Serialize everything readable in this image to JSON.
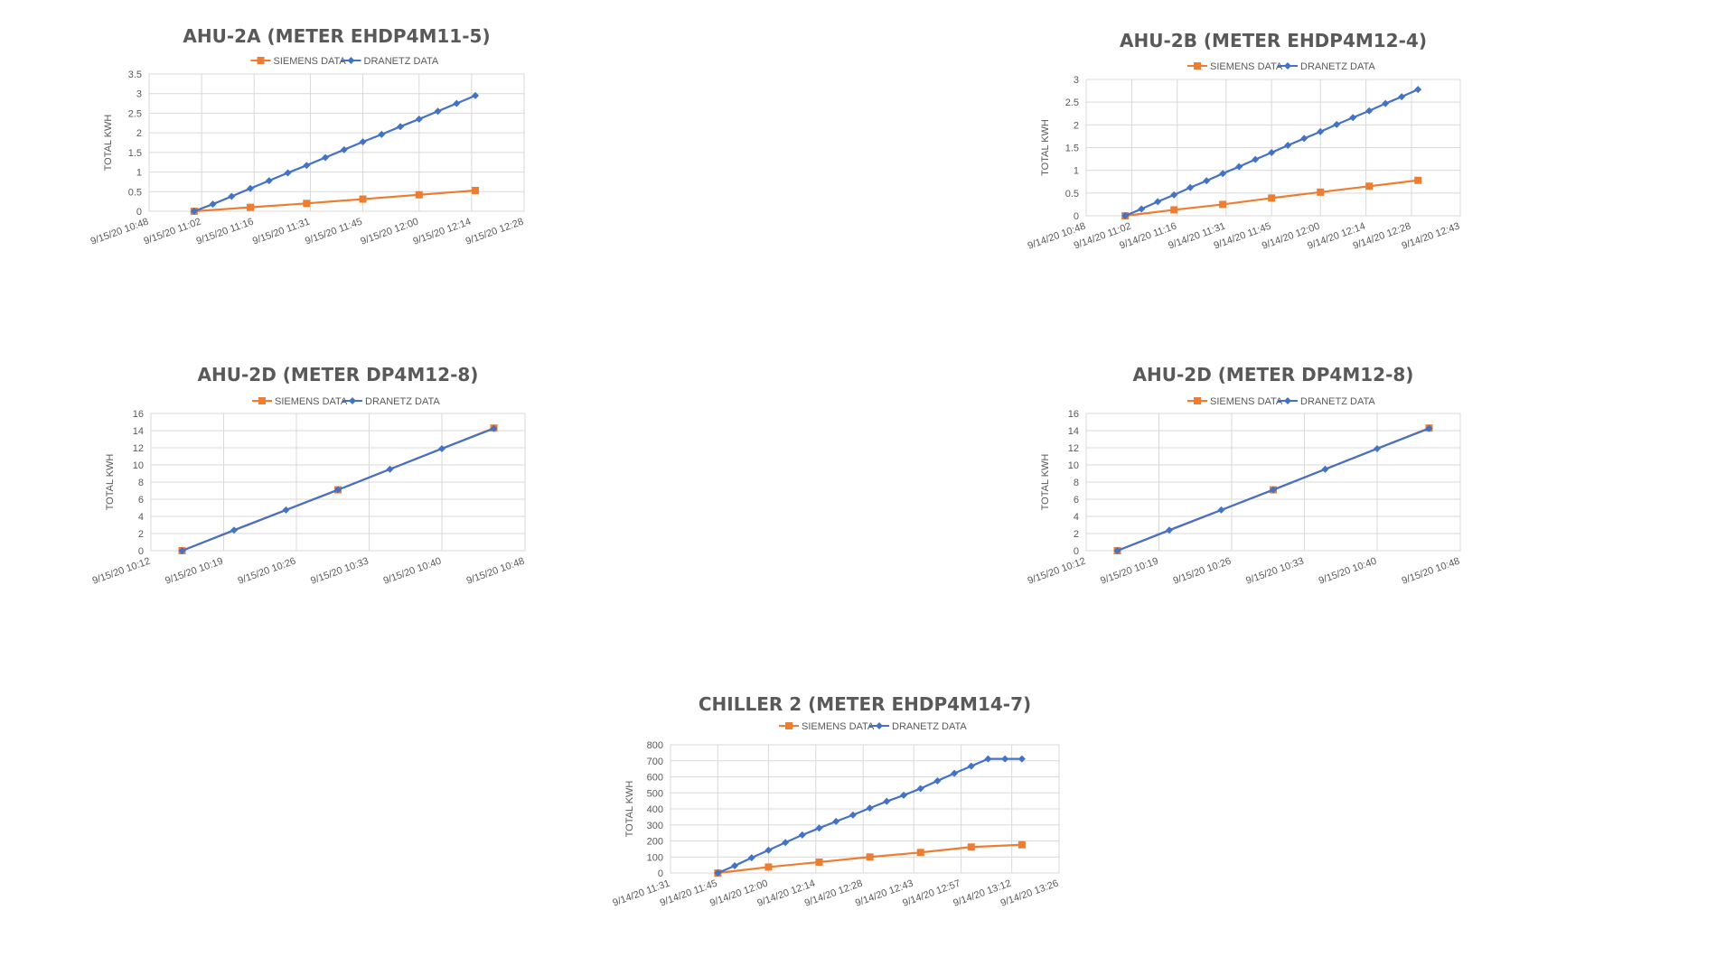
{
  "colors": {
    "siemens": "#ED7D31",
    "dranetz": "#4472C4",
    "grid": "#D9D9D9",
    "text": "#595959"
  },
  "chart_data": [
    {
      "type": "line",
      "title": "AHU-2A (METER EHDP4M11-5)",
      "ylabel": "TOTAL KWH",
      "xlabel": "",
      "ylim": [
        0,
        3.5
      ],
      "yticks": [
        0,
        0.5,
        1,
        1.5,
        2,
        2.5,
        3,
        3.5
      ],
      "ytick_labels": [
        "0",
        "0.5",
        "1",
        "1.5",
        "2",
        "2.5",
        "3",
        "3.5"
      ],
      "xlim": [
        "9/15/20 10:48",
        "9/15/20 12:28"
      ],
      "xtick_labels": [
        "9/15/20 10:48",
        "9/15/20 11:02",
        "9/15/20 11:16",
        "9/15/20 11:31",
        "9/15/20 11:45",
        "9/15/20 12:00",
        "9/15/20 12:14",
        "9/15/20 12:28"
      ],
      "legend": "top-center",
      "grid": true,
      "series": [
        {
          "name": "SIEMENS DATA",
          "marker": "square",
          "color": "#ED7D31",
          "x": [
            "9/15/20 11:00",
            "9/15/20 11:15",
            "9/15/20 11:30",
            "9/15/20 11:45",
            "9/15/20 12:00",
            "9/15/20 12:15"
          ],
          "y": [
            0,
            0.1,
            0.2,
            0.31,
            0.42,
            0.53
          ]
        },
        {
          "name": "DRANETZ DATA",
          "marker": "diamond",
          "color": "#4472C4",
          "x": [
            "9/15/20 11:00",
            "9/15/20 11:05",
            "9/15/20 11:10",
            "9/15/20 11:15",
            "9/15/20 11:20",
            "9/15/20 11:25",
            "9/15/20 11:30",
            "9/15/20 11:35",
            "9/15/20 11:40",
            "9/15/20 11:45",
            "9/15/20 11:50",
            "9/15/20 11:55",
            "9/15/20 12:00",
            "9/15/20 12:05",
            "9/15/20 12:10",
            "9/15/20 12:15"
          ],
          "y": [
            0,
            0.18,
            0.38,
            0.58,
            0.78,
            0.98,
            1.17,
            1.37,
            1.57,
            1.77,
            1.96,
            2.16,
            2.35,
            2.55,
            2.75,
            2.95
          ]
        }
      ]
    },
    {
      "type": "line",
      "title": "AHU-2B (METER EHDP4M12-4)",
      "ylabel": "TOTAL KWH",
      "xlabel": "",
      "ylim": [
        0,
        3
      ],
      "yticks": [
        0,
        0.5,
        1,
        1.5,
        2,
        2.5,
        3
      ],
      "ytick_labels": [
        "0",
        "0.5",
        "1",
        "1.5",
        "2",
        "2.5",
        "3"
      ],
      "xlim": [
        "9/14/20 10:48",
        "9/14/20 12:43"
      ],
      "xtick_labels": [
        "9/14/20 10:48",
        "9/14/20 11:02",
        "9/14/20 11:16",
        "9/14/20 11:31",
        "9/14/20 11:45",
        "9/14/20 12:00",
        "9/14/20 12:14",
        "9/14/20 12:28",
        "9/14/20 12:43"
      ],
      "legend": "top-center",
      "grid": true,
      "series": [
        {
          "name": "SIEMENS DATA",
          "marker": "square",
          "color": "#ED7D31",
          "x": [
            "9/14/20 11:00",
            "9/14/20 11:15",
            "9/14/20 11:30",
            "9/14/20 11:45",
            "9/14/20 12:00",
            "9/14/20 12:15",
            "9/14/20 12:30"
          ],
          "y": [
            0,
            0.13,
            0.25,
            0.39,
            0.52,
            0.65,
            0.78
          ]
        },
        {
          "name": "DRANETZ DATA",
          "marker": "diamond",
          "color": "#4472C4",
          "x": [
            "9/14/20 11:00",
            "9/14/20 11:05",
            "9/14/20 11:10",
            "9/14/20 11:15",
            "9/14/20 11:20",
            "9/14/20 11:25",
            "9/14/20 11:30",
            "9/14/20 11:35",
            "9/14/20 11:40",
            "9/14/20 11:45",
            "9/14/20 11:50",
            "9/14/20 11:55",
            "9/14/20 12:00",
            "9/14/20 12:05",
            "9/14/20 12:10",
            "9/14/20 12:15",
            "9/14/20 12:20",
            "9/14/20 12:25",
            "9/14/20 12:30"
          ],
          "y": [
            0,
            0.15,
            0.31,
            0.46,
            0.62,
            0.77,
            0.93,
            1.08,
            1.24,
            1.39,
            1.55,
            1.7,
            1.85,
            2.01,
            2.16,
            2.31,
            2.47,
            2.62,
            2.78
          ]
        }
      ]
    },
    {
      "type": "line",
      "title": "AHU-2D (METER DP4M12-8)",
      "ylabel": "TOTAL KWH",
      "xlabel": "",
      "ylim": [
        0,
        16
      ],
      "yticks": [
        0,
        2,
        4,
        6,
        8,
        10,
        12,
        14,
        16
      ],
      "ytick_labels": [
        "0",
        "2",
        "4",
        "6",
        "8",
        "10",
        "12",
        "14",
        "16"
      ],
      "xlim": [
        "9/15/20 10:12",
        "9/15/20 10:48"
      ],
      "xtick_labels": [
        "9/15/20 10:12",
        "9/15/20 10:19",
        "9/15/20 10:26",
        "9/15/20 10:33",
        "9/15/20 10:40",
        "9/15/20 10:48"
      ],
      "legend": "top-center",
      "grid": true,
      "series": [
        {
          "name": "SIEMENS DATA",
          "marker": "square",
          "color": "#ED7D31",
          "x": [
            "9/15/20 10:15",
            "9/15/20 10:30",
            "9/15/20 10:45"
          ],
          "y": [
            0,
            7.1,
            14.3
          ]
        },
        {
          "name": "DRANETZ DATA",
          "marker": "diamond",
          "color": "#4472C4",
          "x": [
            "9/15/20 10:15",
            "9/15/20 10:20",
            "9/15/20 10:25",
            "9/15/20 10:30",
            "9/15/20 10:35",
            "9/15/20 10:40",
            "9/15/20 10:45"
          ],
          "y": [
            0,
            2.4,
            4.75,
            7.1,
            9.5,
            11.9,
            14.25
          ]
        }
      ]
    },
    {
      "type": "line",
      "title": "AHU-2D (METER DP4M12-8)",
      "ylabel": "TOTAL KWH",
      "xlabel": "",
      "ylim": [
        0,
        16
      ],
      "yticks": [
        0,
        2,
        4,
        6,
        8,
        10,
        12,
        14,
        16
      ],
      "ytick_labels": [
        "0",
        "2",
        "4",
        "6",
        "8",
        "10",
        "12",
        "14",
        "16"
      ],
      "xlim": [
        "9/15/20 10:12",
        "9/15/20 10:48"
      ],
      "xtick_labels": [
        "9/15/20 10:12",
        "9/15/20 10:19",
        "9/15/20 10:26",
        "9/15/20 10:33",
        "9/15/20 10:40",
        "9/15/20 10:48"
      ],
      "legend": "top-center",
      "grid": true,
      "series": [
        {
          "name": "SIEMENS DATA",
          "marker": "square",
          "color": "#ED7D31",
          "x": [
            "9/15/20 10:15",
            "9/15/20 10:30",
            "9/15/20 10:45"
          ],
          "y": [
            0,
            7.1,
            14.3
          ]
        },
        {
          "name": "DRANETZ DATA",
          "marker": "diamond",
          "color": "#4472C4",
          "x": [
            "9/15/20 10:15",
            "9/15/20 10:20",
            "9/15/20 10:25",
            "9/15/20 10:30",
            "9/15/20 10:35",
            "9/15/20 10:40",
            "9/15/20 10:45"
          ],
          "y": [
            0,
            2.4,
            4.75,
            7.1,
            9.5,
            11.9,
            14.25
          ]
        }
      ]
    },
    {
      "type": "line",
      "title": "CHILLER 2 (METER EHDP4M14-7)",
      "ylabel": "TOTAL KWH",
      "xlabel": "",
      "ylim": [
        0,
        800
      ],
      "yticks": [
        0,
        100,
        200,
        300,
        400,
        500,
        600,
        700,
        800
      ],
      "ytick_labels": [
        "0",
        "100",
        "200",
        "300",
        "400",
        "500",
        "600",
        "700",
        "800"
      ],
      "xlim": [
        "9/14/20 11:31",
        "9/14/20 13:26"
      ],
      "xtick_labels": [
        "9/14/20 11:31",
        "9/14/20 11:45",
        "9/14/20 12:00",
        "9/14/20 12:14",
        "9/14/20 12:28",
        "9/14/20 12:43",
        "9/14/20 12:57",
        "9/14/20 13:12",
        "9/14/20 13:26"
      ],
      "legend": "top-center",
      "grid": true,
      "series": [
        {
          "name": "SIEMENS DATA",
          "marker": "square",
          "color": "#ED7D31",
          "x": [
            "9/14/20 11:45",
            "9/14/20 12:00",
            "9/14/20 12:15",
            "9/14/20 12:30",
            "9/14/20 12:45",
            "9/14/20 13:00",
            "9/14/20 13:15"
          ],
          "y": [
            0,
            37,
            68,
            100,
            128,
            162,
            176
          ]
        },
        {
          "name": "DRANETZ DATA",
          "marker": "diamond",
          "color": "#4472C4",
          "x": [
            "9/14/20 11:45",
            "9/14/20 11:50",
            "9/14/20 11:55",
            "9/14/20 12:00",
            "9/14/20 12:05",
            "9/14/20 12:10",
            "9/14/20 12:15",
            "9/14/20 12:20",
            "9/14/20 12:25",
            "9/14/20 12:30",
            "9/14/20 12:35",
            "9/14/20 12:40",
            "9/14/20 12:45",
            "9/14/20 12:50",
            "9/14/20 12:55",
            "9/14/20 13:00",
            "9/14/20 13:05",
            "9/14/20 13:10",
            "9/14/20 13:15"
          ],
          "y": [
            0,
            45,
            95,
            142,
            190,
            237,
            280,
            322,
            362,
            405,
            447,
            485,
            527,
            575,
            622,
            667,
            712,
            712,
            712
          ]
        }
      ]
    }
  ]
}
